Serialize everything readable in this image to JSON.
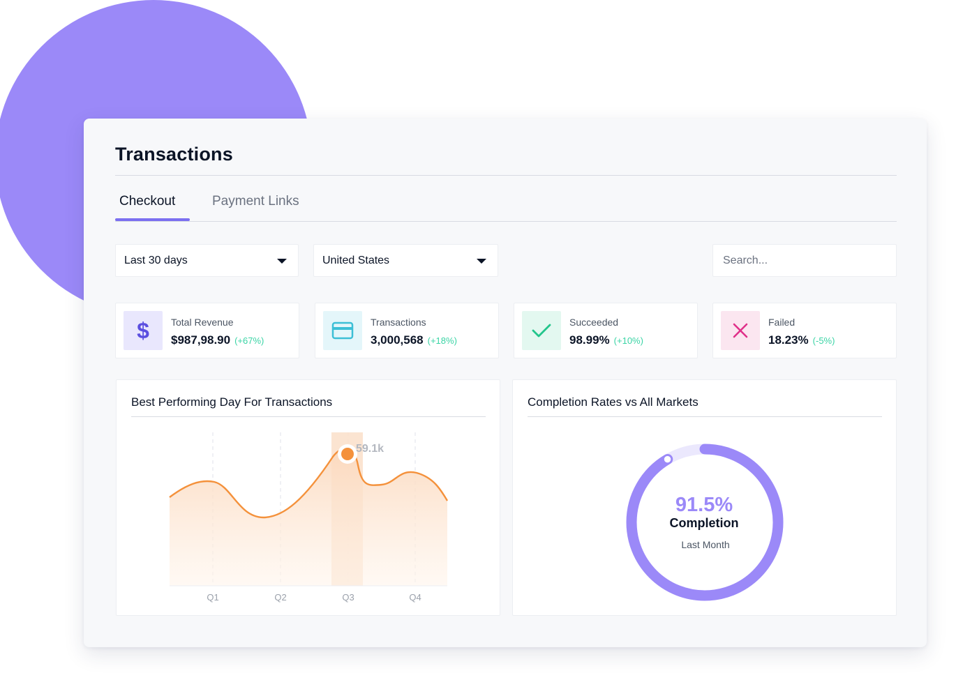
{
  "title": "Transactions",
  "tabs": [
    {
      "label": "Checkout",
      "active": true
    },
    {
      "label": "Payment Links",
      "active": false
    }
  ],
  "filters": {
    "date_range": "Last 30 days",
    "country": "United States",
    "search_placeholder": "Search..."
  },
  "stats": [
    {
      "label": "Total Revenue",
      "value": "$987,98.90",
      "change": "(+67%)",
      "icon": "dollar-icon",
      "color": "#5b4fe0",
      "bg": "#e9e7fd"
    },
    {
      "label": "Transactions",
      "value": "3,000,568",
      "change": "(+18%)",
      "icon": "credit-card-icon",
      "color": "#3cbfd6",
      "bg": "#e4f6fa"
    },
    {
      "label": "Succeeded",
      "value": "98.99%",
      "change": "(+10%)",
      "icon": "check-icon",
      "color": "#22c58b",
      "bg": "#e3f8f0"
    },
    {
      "label": "Failed",
      "value": "18.23%",
      "change": "(-5%)",
      "icon": "x-icon",
      "color": "#e0308a",
      "bg": "#fbe6f0"
    }
  ],
  "colors": {
    "accent": "#7b6ff0",
    "positive": "#3ad4a5",
    "chart_line": "#f4913b",
    "donut": "#9b89f8"
  },
  "chart_data": [
    {
      "type": "area",
      "title": "Best Performing Day For Transactions",
      "categories": [
        "Q1",
        "Q2",
        "Q3",
        "Q4"
      ],
      "highlight": {
        "category": "Q3",
        "label": "59.1k"
      }
    },
    {
      "type": "pie",
      "title": "Completion Rates vs All Markets",
      "value": 91.5,
      "value_label": "91.5%",
      "center_label": "Completion",
      "sub_label": "Last Month"
    }
  ]
}
